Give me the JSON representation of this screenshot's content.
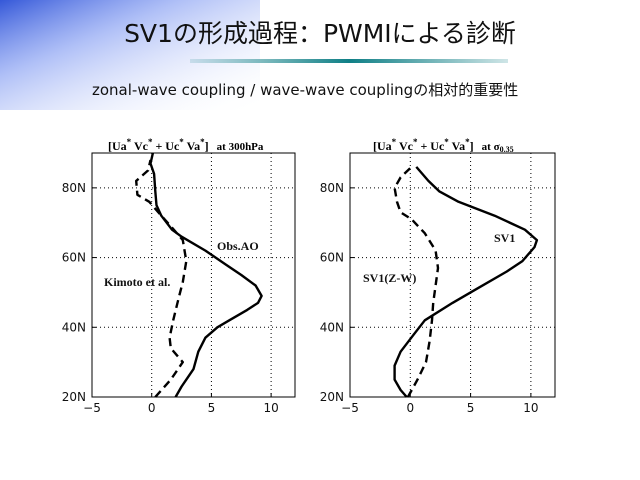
{
  "slide": {
    "title": "SV1の形成過程：PWMIによる診断",
    "subtitle": "zonal-wave coupling / wave-wave couplingの相対的重要性",
    "accent_colors": {
      "corner_blue": "#2a4fd6",
      "underline_teal": "#0f7f86"
    }
  },
  "chart_data": [
    {
      "type": "line",
      "title": "[Ua* Vc* + Uc* Va*]  at 300hPa",
      "xlim": [
        -5,
        12
      ],
      "ylim": [
        20,
        90
      ],
      "xticks": [
        "−5",
        "0",
        "5",
        "10"
      ],
      "yticks": [
        "20N",
        "40N",
        "60N",
        "80N"
      ],
      "grid": "dotted",
      "series": [
        {
          "name": "Obs.AO",
          "style": "solid",
          "points": [
            [
              2,
              20
            ],
            [
              2.5,
              23
            ],
            [
              3.5,
              28
            ],
            [
              3.9,
              33
            ],
            [
              4.5,
              37
            ],
            [
              5.5,
              40
            ],
            [
              6.5,
              42
            ],
            [
              8,
              45
            ],
            [
              8.9,
              47
            ],
            [
              9.2,
              49
            ],
            [
              8.7,
              52
            ],
            [
              7.5,
              55
            ],
            [
              6.2,
              58
            ],
            [
              4.5,
              62
            ],
            [
              2.5,
              66
            ],
            [
              1.7,
              68
            ],
            [
              0.8,
              72
            ],
            [
              0.4,
              75
            ],
            [
              0.3,
              79
            ],
            [
              0.2,
              84
            ],
            [
              -0.1,
              87
            ],
            [
              0.1,
              90
            ]
          ]
        },
        {
          "name": "Kimoto et al.",
          "style": "dashed",
          "points": [
            [
              0.3,
              20
            ],
            [
              1.6,
              25
            ],
            [
              2.6,
              30
            ],
            [
              2.1,
              32
            ],
            [
              1.6,
              34
            ],
            [
              1.5,
              37
            ],
            [
              1.8,
              42
            ],
            [
              2.3,
              49
            ],
            [
              2.6,
              53
            ],
            [
              2.9,
              59
            ],
            [
              2.6,
              65
            ],
            [
              1.6,
              69
            ],
            [
              0.8,
              72
            ],
            [
              -0.2,
              76
            ],
            [
              -1.2,
              78
            ],
            [
              -1.3,
              82
            ],
            [
              -0.3,
              85
            ],
            [
              -0.1,
              88
            ]
          ]
        }
      ]
    },
    {
      "type": "line",
      "title": "[Ua* Vc* + Uc* Va*]  at σ0.35",
      "xlim": [
        -5,
        12
      ],
      "ylim": [
        20,
        90
      ],
      "xticks": [
        "−5",
        "0",
        "5",
        "10"
      ],
      "yticks": [
        "20N",
        "40N",
        "60N",
        "80N"
      ],
      "grid": "dotted",
      "series": [
        {
          "name": "SV1",
          "style": "solid",
          "points": [
            [
              -0.3,
              20
            ],
            [
              -0.8,
              22
            ],
            [
              -1.3,
              25
            ],
            [
              -1.3,
              29
            ],
            [
              -0.8,
              33
            ],
            [
              0.3,
              38
            ],
            [
              1.2,
              42
            ],
            [
              3.5,
              47
            ],
            [
              5.5,
              51
            ],
            [
              8,
              56
            ],
            [
              9.3,
              59
            ],
            [
              10.3,
              63
            ],
            [
              10.5,
              65
            ],
            [
              9.5,
              68
            ],
            [
              7,
              72
            ],
            [
              4,
              76
            ],
            [
              2.4,
              79
            ],
            [
              1.5,
              82
            ],
            [
              0.5,
              86
            ]
          ]
        },
        {
          "name": "SV1(Z-W)",
          "style": "dashed",
          "points": [
            [
              -0.2,
              20
            ],
            [
              0.6,
              25
            ],
            [
              1.3,
              30
            ],
            [
              1.6,
              36
            ],
            [
              1.8,
              42
            ],
            [
              1.9,
              47
            ],
            [
              2.1,
              52
            ],
            [
              2.3,
              57
            ],
            [
              2.1,
              62
            ],
            [
              1.2,
              67
            ],
            [
              0.1,
              71
            ],
            [
              -0.8,
              73
            ],
            [
              -1.1,
              76
            ],
            [
              -1.3,
              80
            ],
            [
              -0.8,
              83
            ],
            [
              0.1,
              86
            ]
          ]
        }
      ]
    }
  ],
  "annotations": {
    "left": {
      "obs": "Obs.AO",
      "kimoto": "Kimoto et al."
    },
    "right": {
      "sv1": "SV1",
      "sv1zw": "SV1(Z-W)"
    }
  }
}
